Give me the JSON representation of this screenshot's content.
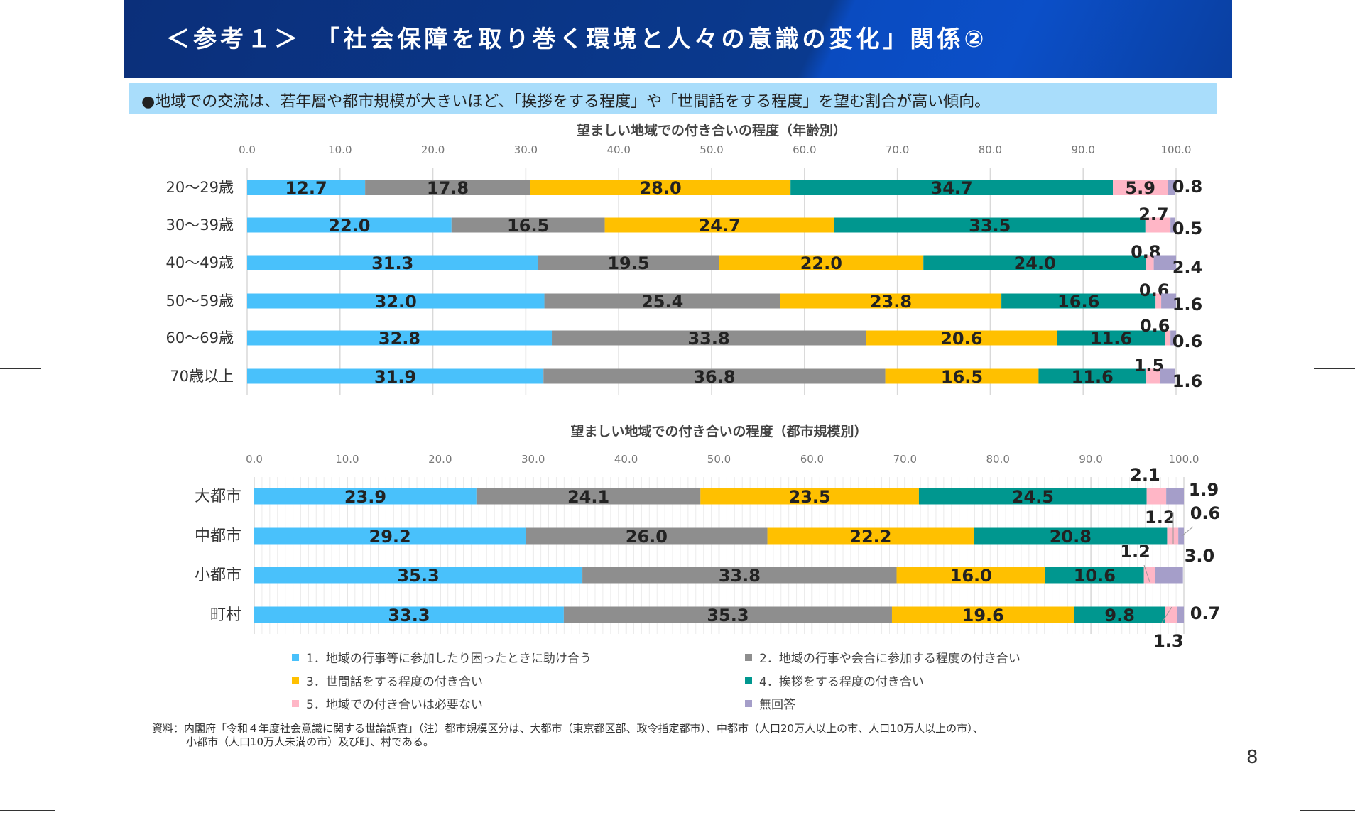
{
  "header": {
    "title": "＜参考１＞　「社会保障を取り巻く環境と人々の意識の変化」関係②"
  },
  "summary": {
    "text": "●地域での交流は、若年層や都市規模が大きいほど、「挨拶をする程度」や「世間話をする程度」を望む割合が高い傾向。"
  },
  "colors": [
    "#49c1fb",
    "#8e8e8e",
    "#ffc000",
    "#00978f",
    "#ffb6c6",
    "#a59ec9"
  ],
  "legend": [
    "1．地域の行事等に参加したり困ったときに助け合う",
    "2．地域の行事や会合に参加する程度の付き合い",
    "3．世間話をする程度の付き合い",
    "4．挨拶をする程度の付き合い",
    "5．地域での付き合いは必要ない",
    "無回答"
  ],
  "chart_data": [
    {
      "type": "bar",
      "orientation": "horizontal-stacked",
      "title": "望ましい地域での付き合いの程度（年齢別）",
      "xlim": [
        0,
        100
      ],
      "ticks": [
        "0.0",
        "10.0",
        "20.0",
        "30.0",
        "40.0",
        "50.0",
        "60.0",
        "70.0",
        "80.0",
        "90.0",
        "100.0"
      ],
      "categories": [
        "20～29歳",
        "30～39歳",
        "40～49歳",
        "50～59歳",
        "60～69歳",
        "70歳以上"
      ],
      "series": [
        {
          "name": "1．地域の行事等に参加したり困ったときに助け合う",
          "values": [
            12.7,
            22.0,
            31.3,
            32.0,
            32.8,
            31.9
          ]
        },
        {
          "name": "2．地域の行事や会合に参加する程度の付き合い",
          "values": [
            17.8,
            16.5,
            19.5,
            25.4,
            33.8,
            36.8
          ]
        },
        {
          "name": "3．世間話をする程度の付き合い",
          "values": [
            28.0,
            24.7,
            22.0,
            23.8,
            20.6,
            16.5
          ]
        },
        {
          "name": "4．挨拶をする程度の付き合い",
          "values": [
            34.7,
            33.5,
            24.0,
            16.6,
            11.6,
            11.6
          ]
        },
        {
          "name": "5．地域での付き合いは必要ない",
          "values": [
            5.9,
            2.7,
            0.8,
            0.6,
            0.6,
            1.5
          ]
        },
        {
          "name": "無回答",
          "values": [
            0.8,
            0.5,
            2.4,
            1.6,
            0.6,
            1.6
          ]
        }
      ]
    },
    {
      "type": "bar",
      "orientation": "horizontal-stacked",
      "title": "望ましい地域での付き合いの程度（都市規模別）",
      "xlim": [
        0,
        100
      ],
      "ticks": [
        "0.0",
        "10.0",
        "20.0",
        "30.0",
        "40.0",
        "50.0",
        "60.0",
        "70.0",
        "80.0",
        "90.0",
        "100.0"
      ],
      "categories": [
        "大都市",
        "中都市",
        "小都市",
        "町村"
      ],
      "series": [
        {
          "name": "1．地域の行事等に参加したり困ったときに助け合う",
          "values": [
            23.9,
            29.2,
            35.3,
            33.3
          ]
        },
        {
          "name": "2．地域の行事や会合に参加する程度の付き合い",
          "values": [
            24.1,
            26.0,
            33.8,
            35.3
          ]
        },
        {
          "name": "3．世間話をする程度の付き合い",
          "values": [
            23.5,
            22.2,
            16.0,
            19.6
          ]
        },
        {
          "name": "4．挨拶をする程度の付き合い",
          "values": [
            24.5,
            20.8,
            10.6,
            9.8
          ]
        },
        {
          "name": "5．地域での付き合いは必要ない",
          "values": [
            2.1,
            1.2,
            1.2,
            1.3
          ]
        },
        {
          "name": "無回答",
          "values": [
            1.9,
            0.6,
            3.0,
            0.7
          ]
        }
      ]
    }
  ],
  "footnote": {
    "line1": "資料：内閣府「令和４年度社会意識に関する世論調査」（注）都市規模区分は、大都市（東京都区部、政令指定都市）、中都市（人口20万人以上の市、人口10万人以上の市）、",
    "line2": "小都市（人口10万人未満の市）及び町、村である。"
  },
  "page_number": "8"
}
